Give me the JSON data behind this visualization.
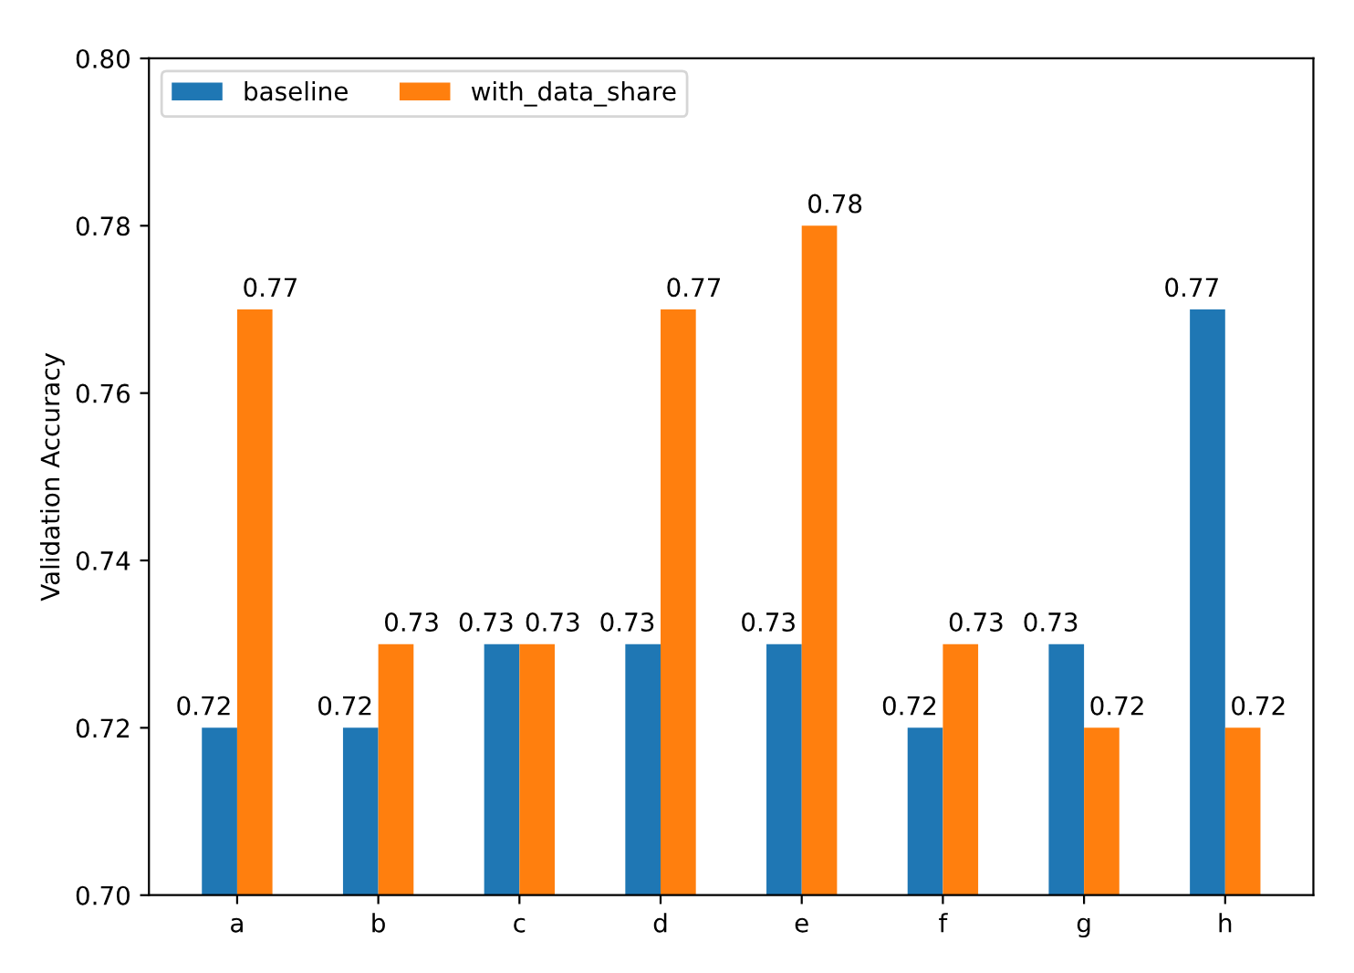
{
  "chart_data": {
    "type": "bar",
    "ylabel": "Validation Accuracy",
    "categories": [
      "a",
      "b",
      "c",
      "d",
      "e",
      "f",
      "g",
      "h"
    ],
    "series": [
      {
        "name": "baseline",
        "color": "#1f77b4",
        "values": [
          0.72,
          0.72,
          0.73,
          0.73,
          0.73,
          0.72,
          0.73,
          0.77
        ]
      },
      {
        "name": "with_data_share",
        "color": "#ff7f0e",
        "values": [
          0.77,
          0.73,
          0.73,
          0.77,
          0.78,
          0.73,
          0.72,
          0.72
        ]
      }
    ],
    "ylim": [
      0.7,
      0.8
    ],
    "yticks": [
      {
        "value": 0.7,
        "label": "0.70"
      },
      0.72,
      0.74,
      0.76,
      0.78,
      {
        "value": 0.8,
        "label": "0.80"
      }
    ],
    "data_labels": true,
    "legend": "top left",
    "grid": false
  }
}
